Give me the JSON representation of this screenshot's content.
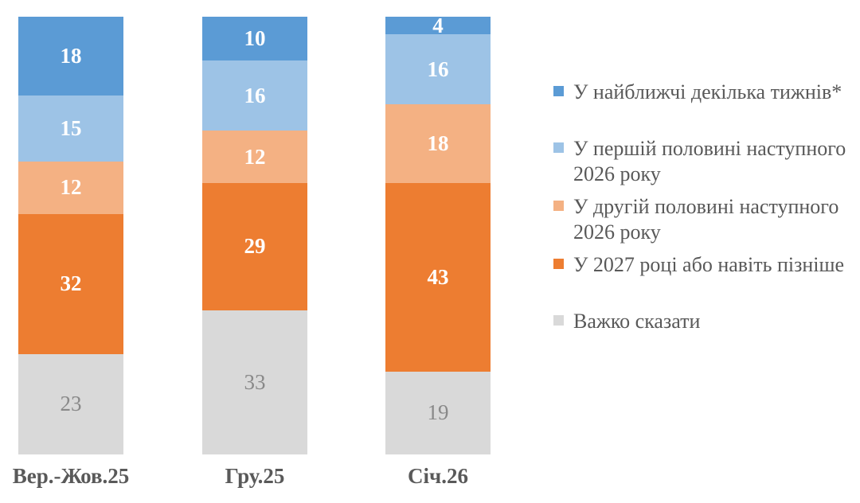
{
  "chart_data": {
    "type": "bar",
    "stacked": true,
    "orientation": "vertical",
    "categories": [
      "Вер.-Жов.25",
      "Гру.25",
      "Січ.26"
    ],
    "series": [
      {
        "name": "У найближчі декілька тижнів*",
        "color": "#5B9BD5",
        "label_color": "#FFFFFF",
        "label_bold": true,
        "values": [
          18,
          10,
          4
        ]
      },
      {
        "name": "У першій половині наступного 2026 року",
        "color": "#9DC3E6",
        "label_color": "#FFFFFF",
        "label_bold": true,
        "values": [
          15,
          16,
          16
        ]
      },
      {
        "name": "У другій половині наступного 2026 року",
        "color": "#F4B183",
        "label_color": "#FFFFFF",
        "label_bold": true,
        "values": [
          12,
          12,
          18
        ]
      },
      {
        "name": "У 2027 році або навіть пізніше",
        "color": "#ED7D31",
        "label_color": "#FFFFFF",
        "label_bold": true,
        "values": [
          32,
          29,
          43
        ]
      },
      {
        "name": "Важко сказати",
        "color": "#D9D9D9",
        "label_color": "#898989",
        "label_bold": false,
        "values": [
          23,
          33,
          19
        ]
      }
    ],
    "ylim": [
      0,
      100
    ],
    "grid": false,
    "axes_visible": false,
    "legend_position": "right",
    "data_labels": "inside-center"
  },
  "legend": {
    "items": [
      {
        "swatch_color": "#5B9BD5",
        "lines": [
          "У найближчі декілька тижнів*"
        ]
      },
      {
        "swatch_color": "#9DC3E6",
        "lines": [
          "У першій половині наступного",
          "2026 року"
        ]
      },
      {
        "swatch_color": "#F4B183",
        "lines": [
          "У другій половині наступного",
          "2026 року"
        ]
      },
      {
        "swatch_color": "#ED7D31",
        "lines": [
          "У 2027 році або навіть пізніше"
        ]
      },
      {
        "swatch_color": "#D9D9D9",
        "lines": [
          "Важко сказати"
        ]
      }
    ]
  },
  "colors": {
    "axis_text": "#595959",
    "legend_text": "#595959",
    "background": "#FFFFFF"
  }
}
